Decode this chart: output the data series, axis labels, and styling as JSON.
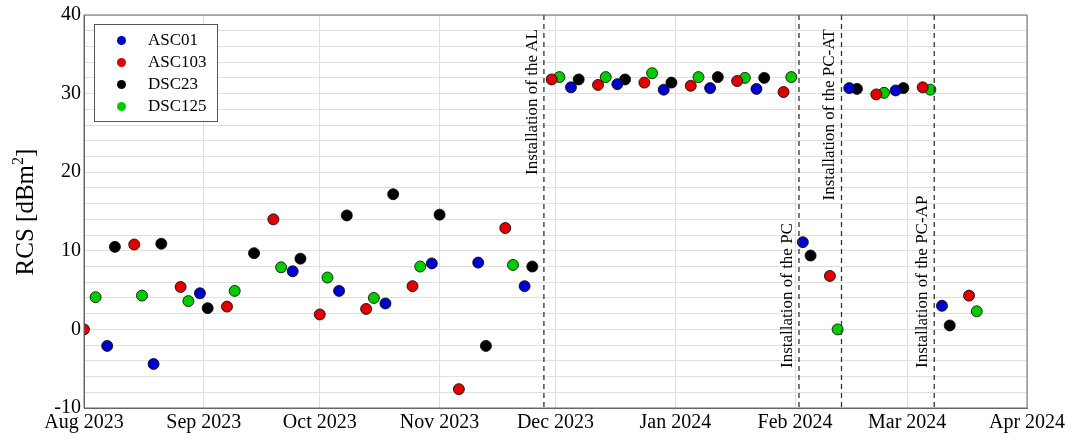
{
  "chart_data": {
    "type": "scatter",
    "ylabel": "RCS [dBm$^{2}$]",
    "xlim": [
      "2023-08-01",
      "2024-04-01"
    ],
    "xticks": [
      {
        "value": "2023-08-01",
        "label": "Aug 2023"
      },
      {
        "value": "2023-09-01",
        "label": "Sep 2023"
      },
      {
        "value": "2023-10-01",
        "label": "Oct 2023"
      },
      {
        "value": "2023-11-01",
        "label": "Nov 2023"
      },
      {
        "value": "2023-12-01",
        "label": "Dec 2023"
      },
      {
        "value": "2024-01-01",
        "label": "Jan 2024"
      },
      {
        "value": "2024-02-01",
        "label": "Feb 2024"
      },
      {
        "value": "2024-03-01",
        "label": "Mar 2024"
      },
      {
        "value": "2024-04-01",
        "label": "Apr 2024"
      }
    ],
    "ylim": [
      -10,
      40
    ],
    "yticks": [
      -10,
      {
        "value": -8,
        "label": null
      },
      {
        "value": -6,
        "label": null
      },
      {
        "value": -4,
        "label": null
      },
      {
        "value": -2,
        "label": null
      },
      0,
      {
        "value": 2,
        "label": null
      },
      {
        "value": 4,
        "label": null
      },
      {
        "value": 6,
        "label": null
      },
      {
        "value": 8,
        "label": null
      },
      10,
      {
        "value": 12,
        "label": null
      },
      {
        "value": 14,
        "label": null
      },
      {
        "value": 16,
        "label": null
      },
      {
        "value": 18,
        "label": null
      },
      20,
      {
        "value": 22,
        "label": null
      },
      {
        "value": 24,
        "label": null
      },
      {
        "value": 26,
        "label": null
      },
      {
        "value": 28,
        "label": null
      },
      30,
      {
        "value": 32,
        "label": null
      },
      {
        "value": 34,
        "label": null
      },
      {
        "value": 36,
        "label": null
      },
      {
        "value": 38,
        "label": null
      },
      40
    ],
    "grid": true,
    "legend": "top left",
    "marker": "circle",
    "series": [
      {
        "name": "ASC01",
        "color": "#0000cc",
        "x": [
          "2023-08-07",
          "2023-08-19",
          "2023-08-31",
          "2023-09-24",
          "2023-10-06",
          "2023-10-18",
          "2023-10-30",
          "2023-11-11",
          "2023-11-23",
          "2023-12-05",
          "2023-12-17",
          "2023-12-29",
          "2024-01-10",
          "2024-01-22",
          "2024-02-03",
          "2024-02-15",
          "2024-02-27",
          "2024-03-10"
        ],
        "values": [
          -2.1,
          -4.4,
          4.6,
          7.4,
          4.9,
          3.3,
          8.4,
          8.5,
          5.5,
          30.8,
          31.2,
          30.5,
          30.7,
          30.6,
          11.1,
          30.7,
          30.4,
          3.0
        ]
      },
      {
        "name": "ASC103",
        "color": "#e00000",
        "x": [
          "2023-08-01",
          "2023-08-14",
          "2023-08-26",
          "2023-09-07",
          "2023-09-19",
          "2023-10-01",
          "2023-10-13",
          "2023-10-25",
          "2023-11-06",
          "2023-11-18",
          "2023-11-30",
          "2023-12-12",
          "2023-12-24",
          "2024-01-05",
          "2024-01-17",
          "2024-01-29",
          "2024-02-10",
          "2024-02-22",
          "2024-03-05",
          "2024-03-17"
        ],
        "values": [
          0,
          10.8,
          5.4,
          2.9,
          14.0,
          1.9,
          2.6,
          5.5,
          -7.6,
          12.9,
          31.8,
          31.1,
          31.4,
          31.0,
          31.6,
          30.2,
          6.8,
          29.9,
          30.8,
          4.3
        ]
      },
      {
        "name": "DSC23",
        "color": "#000000",
        "x": [
          "2023-08-09",
          "2023-08-21",
          "2023-09-02",
          "2023-09-14",
          "2023-09-26",
          "2023-10-08",
          "2023-10-20",
          "2023-11-01",
          "2023-11-13",
          "2023-11-25",
          "2023-12-07",
          "2023-12-19",
          "2023-12-31",
          "2024-01-12",
          "2024-01-24",
          "2024-02-05",
          "2024-02-17",
          "2024-02-29",
          "2024-03-12"
        ],
        "values": [
          10.5,
          10.9,
          2.7,
          9.7,
          9.0,
          14.5,
          17.2,
          14.6,
          -2.1,
          8.0,
          31.8,
          31.8,
          31.4,
          32.1,
          32.0,
          9.4,
          30.6,
          30.7,
          0.5
        ]
      },
      {
        "name": "DSC125",
        "color": "#00cc00",
        "x": [
          "2023-08-04",
          "2023-08-16",
          "2023-08-28",
          "2023-09-09",
          "2023-09-21",
          "2023-10-03",
          "2023-10-15",
          "2023-10-27",
          "2023-11-20",
          "2023-12-02",
          "2023-12-14",
          "2023-12-26",
          "2024-01-07",
          "2024-01-19",
          "2024-01-31",
          "2024-02-12",
          "2024-02-24",
          "2024-03-07",
          "2024-03-19"
        ],
        "values": [
          4.1,
          4.3,
          3.6,
          4.9,
          7.9,
          6.6,
          4.0,
          8.0,
          8.2,
          32.1,
          32.1,
          32.6,
          32.1,
          32.0,
          32.1,
          0,
          30.1,
          30.5,
          2.3
        ]
      }
    ],
    "ref_lines": [
      {
        "axis": "x",
        "value": "2023-11-28",
        "label": "Installation of the AL",
        "color": "#333333",
        "line_style": "dashed"
      },
      {
        "axis": "x",
        "value": "2024-02-02",
        "label": "Installation of the PC",
        "color": "#333333",
        "line_style": "dashed"
      },
      {
        "axis": "x",
        "value": "2024-02-13",
        "label": "Installation of the PC-AT",
        "color": "#333333",
        "line_style": "dashed"
      },
      {
        "axis": "x",
        "value": "2024-03-08",
        "label": "Installation of the PC-AP",
        "color": "#333333",
        "line_style": "dashed"
      }
    ]
  }
}
